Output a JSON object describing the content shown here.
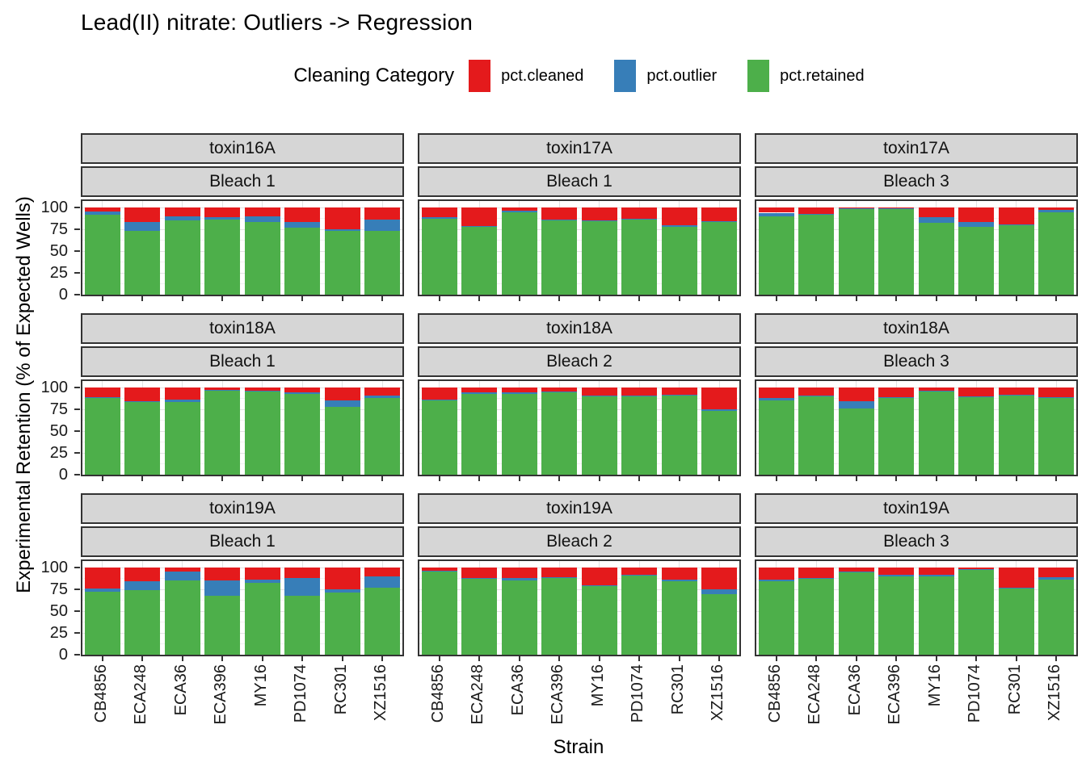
{
  "title": "Lead(II) nitrate: Outliers -> Regression",
  "chart_data": {
    "type": "bar",
    "stacked": true,
    "title": "Lead(II) nitrate: Outliers -> Regression",
    "legend_title": "Cleaning Category",
    "legend_position": "top",
    "legend": [
      {
        "label": "pct.cleaned",
        "color": "#E41A1C"
      },
      {
        "label": "pct.outlier",
        "color": "#377EB8"
      },
      {
        "label": "pct.retained",
        "color": "#4DAF4A"
      }
    ],
    "xlabel": "Strain",
    "ylabel": "Experimental Retention (% of Expected Wells)",
    "ylim": [
      0,
      100
    ],
    "yticks": [
      0,
      25,
      50,
      75,
      100
    ],
    "grid": true,
    "categories": [
      "CB4856",
      "ECA248",
      "ECA36",
      "ECA396",
      "MY16",
      "PD1074",
      "RC301",
      "XZ1516"
    ],
    "stack_order_bottom_to_top": [
      "pct.retained",
      "pct.outlier",
      "pct.cleaned"
    ],
    "values_format": "per strain: [pct.retained, pct.outlier, pct.cleaned], percents summing to 100",
    "facet_grid": {
      "rows": 3,
      "cols": 3,
      "row_labels_outer": [
        "toxin",
        "bleach"
      ]
    },
    "facets": [
      {
        "row": 0,
        "col": 0,
        "toxin": "toxin16A",
        "bleach": "Bleach 1",
        "values": [
          [
            92,
            3,
            5
          ],
          [
            73,
            10,
            17
          ],
          [
            85,
            5,
            10
          ],
          [
            86,
            3,
            11
          ],
          [
            83,
            7,
            10
          ],
          [
            77,
            6,
            17
          ],
          [
            73,
            2,
            25
          ],
          [
            73,
            13,
            14
          ]
        ]
      },
      {
        "row": 0,
        "col": 1,
        "toxin": "toxin17A",
        "bleach": "Bleach 1",
        "values": [
          [
            87,
            2,
            11
          ],
          [
            78,
            1,
            21
          ],
          [
            94,
            2,
            4
          ],
          [
            85,
            1,
            14
          ],
          [
            84,
            1,
            15
          ],
          [
            86,
            1,
            13
          ],
          [
            78,
            2,
            20
          ],
          [
            83,
            1,
            16
          ]
        ]
      },
      {
        "row": 0,
        "col": 2,
        "toxin": "toxin17A",
        "bleach": "Bleach 3",
        "values": [
          [
            90,
            4,
            6
          ],
          [
            92,
            1,
            7
          ],
          [
            99,
            0.5,
            0.5
          ],
          [
            99,
            0.5,
            0.5
          ],
          [
            82,
            7,
            11
          ],
          [
            78,
            5,
            17
          ],
          [
            80,
            1,
            19
          ],
          [
            94,
            3,
            3
          ]
        ]
      },
      {
        "row": 1,
        "col": 0,
        "toxin": "toxin18A",
        "bleach": "Bleach 1",
        "values": [
          [
            88,
            1,
            11
          ],
          [
            83,
            1,
            16
          ],
          [
            83,
            3,
            14
          ],
          [
            96,
            1,
            3
          ],
          [
            95,
            1,
            4
          ],
          [
            93,
            1,
            6
          ],
          [
            78,
            7,
            15
          ],
          [
            88,
            3,
            9
          ]
        ]
      },
      {
        "row": 1,
        "col": 1,
        "toxin": "toxin18A",
        "bleach": "Bleach 2",
        "values": [
          [
            85,
            1,
            14
          ],
          [
            93,
            1,
            6
          ],
          [
            93,
            1,
            6
          ],
          [
            94,
            1,
            5
          ],
          [
            90,
            1,
            9
          ],
          [
            90,
            1,
            9
          ],
          [
            91,
            1,
            8
          ],
          [
            73,
            2,
            25
          ]
        ]
      },
      {
        "row": 1,
        "col": 2,
        "toxin": "toxin18A",
        "bleach": "Bleach 3",
        "values": [
          [
            85,
            3,
            12
          ],
          [
            90,
            1,
            9
          ],
          [
            76,
            8,
            16
          ],
          [
            88,
            1,
            11
          ],
          [
            95,
            1,
            4
          ],
          [
            89,
            1,
            10
          ],
          [
            91,
            1,
            8
          ],
          [
            88,
            1,
            11
          ]
        ]
      },
      {
        "row": 2,
        "col": 0,
        "toxin": "toxin19A",
        "bleach": "Bleach 1",
        "values": [
          [
            72,
            4,
            24
          ],
          [
            74,
            10,
            16
          ],
          [
            85,
            10,
            5
          ],
          [
            68,
            17,
            15
          ],
          [
            82,
            4,
            14
          ],
          [
            68,
            20,
            12
          ],
          [
            71,
            4,
            25
          ],
          [
            77,
            13,
            10
          ]
        ]
      },
      {
        "row": 2,
        "col": 1,
        "toxin": "toxin19A",
        "bleach": "Bleach 2",
        "values": [
          [
            95,
            1,
            4
          ],
          [
            87,
            1,
            12
          ],
          [
            85,
            3,
            12
          ],
          [
            88,
            1,
            11
          ],
          [
            79,
            1,
            20
          ],
          [
            91,
            1,
            8
          ],
          [
            84,
            2,
            14
          ],
          [
            69,
            6,
            25
          ]
        ]
      },
      {
        "row": 2,
        "col": 2,
        "toxin": "toxin19A",
        "bleach": "Bleach 3",
        "values": [
          [
            84,
            2,
            14
          ],
          [
            87,
            1,
            12
          ],
          [
            94,
            1,
            5
          ],
          [
            90,
            2,
            8
          ],
          [
            90,
            2,
            8
          ],
          [
            97,
            1,
            2
          ],
          [
            76,
            1,
            23
          ],
          [
            86,
            3,
            11
          ]
        ]
      }
    ],
    "style_colors": {
      "strip_background": "#d6d6d6",
      "panel_border": "#333333",
      "gridline_major": "#e3e3e3",
      "gridline_minor": "#f1f1f1"
    }
  }
}
